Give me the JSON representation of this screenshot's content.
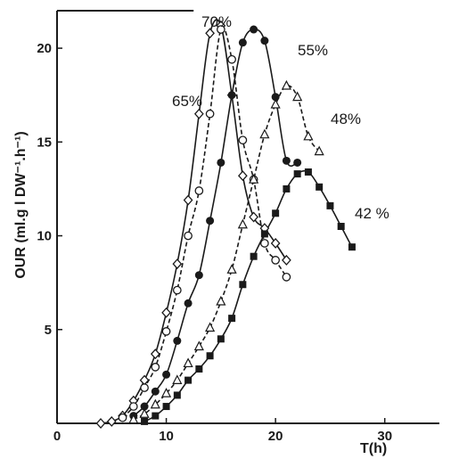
{
  "chart_data": {
    "type": "line",
    "xlabel": "T(h)",
    "ylabel": "OUR (ml.g l DW⁻¹.h⁻¹)",
    "xlim": [
      0,
      35
    ],
    "ylim": [
      0,
      22
    ],
    "x_ticks": [
      "0",
      "10",
      "20",
      "30"
    ],
    "y_ticks": [
      "5",
      "10",
      "15",
      "20"
    ],
    "grid": false,
    "colors": {
      "ink": "#1a1a1a",
      "background": "#ffffff"
    },
    "series": [
      {
        "name": "70%",
        "marker": "diamond-open",
        "dash": "solid",
        "points": [
          [
            4,
            0
          ],
          [
            5,
            0.1
          ],
          [
            6,
            0.4
          ],
          [
            7,
            1.2
          ],
          [
            8,
            2.3
          ],
          [
            9,
            3.7
          ],
          [
            10,
            5.9
          ],
          [
            11,
            8.5
          ],
          [
            12,
            11.9
          ],
          [
            13,
            16.5
          ],
          [
            14,
            20.8
          ],
          [
            15,
            21.2
          ],
          [
            16,
            17.5
          ],
          [
            17,
            13.2
          ],
          [
            18,
            11
          ],
          [
            19,
            10.4
          ],
          [
            20,
            9.6
          ],
          [
            21,
            8.7
          ]
        ]
      },
      {
        "name": "65%",
        "marker": "circle-open",
        "dash": "dashed",
        "points": [
          [
            6,
            0.3
          ],
          [
            7,
            0.9
          ],
          [
            8,
            1.9
          ],
          [
            9,
            3
          ],
          [
            10,
            4.9
          ],
          [
            11,
            7.1
          ],
          [
            12,
            10
          ],
          [
            13,
            12.4
          ],
          [
            14,
            16.5
          ],
          [
            15,
            21
          ],
          [
            16,
            19.4
          ],
          [
            17,
            15.1
          ],
          [
            18,
            13
          ],
          [
            19,
            9.6
          ],
          [
            20,
            8.7
          ],
          [
            21,
            7.8
          ]
        ]
      },
      {
        "name": "55%",
        "marker": "circle-filled",
        "dash": "solid",
        "points": [
          [
            7,
            0.4
          ],
          [
            8,
            0.9
          ],
          [
            9,
            1.7
          ],
          [
            10,
            2.6
          ],
          [
            11,
            4.4
          ],
          [
            12,
            6.4
          ],
          [
            13,
            7.9
          ],
          [
            14,
            10.8
          ],
          [
            15,
            13.9
          ],
          [
            16,
            17.5
          ],
          [
            17,
            20.3
          ],
          [
            18,
            21
          ],
          [
            19,
            20.4
          ],
          [
            20,
            17.4
          ],
          [
            21,
            14
          ],
          [
            22,
            13.9
          ]
        ]
      },
      {
        "name": "48%",
        "marker": "triangle-open",
        "dash": "dashed",
        "points": [
          [
            7,
            0.2
          ],
          [
            8,
            0.5
          ],
          [
            9,
            1
          ],
          [
            10,
            1.6
          ],
          [
            11,
            2.3
          ],
          [
            12,
            3.2
          ],
          [
            13,
            4.1
          ],
          [
            14,
            5.1
          ],
          [
            15,
            6.5
          ],
          [
            16,
            8.2
          ],
          [
            17,
            10.6
          ],
          [
            18,
            13
          ],
          [
            19,
            15.4
          ],
          [
            20,
            17
          ],
          [
            21,
            18
          ],
          [
            22,
            17.4
          ],
          [
            23,
            15.3
          ],
          [
            24,
            14.5
          ]
        ]
      },
      {
        "name": "42%",
        "marker": "square-filled",
        "dash": "solid",
        "points": [
          [
            8,
            0.1
          ],
          [
            9,
            0.4
          ],
          [
            10,
            0.9
          ],
          [
            11,
            1.5
          ],
          [
            12,
            2.3
          ],
          [
            13,
            2.9
          ],
          [
            14,
            3.6
          ],
          [
            15,
            4.5
          ],
          [
            16,
            5.6
          ],
          [
            17,
            7.4
          ],
          [
            18,
            8.9
          ],
          [
            19,
            10.1
          ],
          [
            20,
            11.2
          ],
          [
            21,
            12.5
          ],
          [
            22,
            13.3
          ],
          [
            23,
            13.4
          ],
          [
            24,
            12.6
          ],
          [
            25,
            11.6
          ],
          [
            26,
            10.5
          ],
          [
            27,
            9.4
          ]
        ]
      }
    ],
    "labels": [
      {
        "text": "70%",
        "series": "70%"
      },
      {
        "text": "65%",
        "series": "65%"
      },
      {
        "text": "55%",
        "series": "55%"
      },
      {
        "text": "48%",
        "series": "48%"
      },
      {
        "text": "42 %",
        "series": "42%"
      }
    ]
  }
}
